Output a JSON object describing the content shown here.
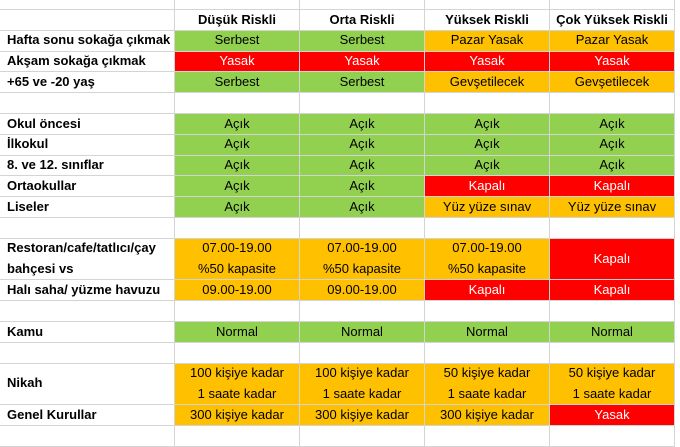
{
  "header": {
    "columns": [
      "Düşük Riskli",
      "Orta Riskli",
      "Yüksek Riskli",
      "Çok Yüksek Riskli"
    ]
  },
  "groups": [
    {
      "rows": [
        {
          "label": [
            "Hafta sonu sokağa çıkmak"
          ],
          "cells": [
            {
              "lines": [
                "Serbest"
              ],
              "color": "#92d050"
            },
            {
              "lines": [
                "Serbest"
              ],
              "color": "#92d050"
            },
            {
              "lines": [
                "Pazar Yasak"
              ],
              "color": "#ffc000"
            },
            {
              "lines": [
                "Pazar Yasak"
              ],
              "color": "#ffc000"
            }
          ]
        },
        {
          "label": [
            "Akşam sokağa çıkmak"
          ],
          "cells": [
            {
              "lines": [
                "Yasak"
              ],
              "color": "#ff0000"
            },
            {
              "lines": [
                "Yasak"
              ],
              "color": "#ff0000"
            },
            {
              "lines": [
                "Yasak"
              ],
              "color": "#ff0000"
            },
            {
              "lines": [
                "Yasak"
              ],
              "color": "#ff0000"
            }
          ]
        },
        {
          "label": [
            "+65 ve -20 yaş"
          ],
          "cells": [
            {
              "lines": [
                "Serbest"
              ],
              "color": "#92d050"
            },
            {
              "lines": [
                "Serbest"
              ],
              "color": "#92d050"
            },
            {
              "lines": [
                "Gevşetilecek"
              ],
              "color": "#ffc000"
            },
            {
              "lines": [
                "Gevşetilecek"
              ],
              "color": "#ffc000"
            }
          ]
        }
      ]
    },
    {
      "rows": [
        {
          "label": [
            "Okul öncesi"
          ],
          "cells": [
            {
              "lines": [
                "Açık"
              ],
              "color": "#92d050"
            },
            {
              "lines": [
                "Açık"
              ],
              "color": "#92d050"
            },
            {
              "lines": [
                "Açık"
              ],
              "color": "#92d050"
            },
            {
              "lines": [
                "Açık"
              ],
              "color": "#92d050"
            }
          ]
        },
        {
          "label": [
            "İlkokul"
          ],
          "cells": [
            {
              "lines": [
                "Açık"
              ],
              "color": "#92d050"
            },
            {
              "lines": [
                "Açık"
              ],
              "color": "#92d050"
            },
            {
              "lines": [
                "Açık"
              ],
              "color": "#92d050"
            },
            {
              "lines": [
                "Açık"
              ],
              "color": "#92d050"
            }
          ]
        },
        {
          "label": [
            "8. ve 12. sınıflar"
          ],
          "cells": [
            {
              "lines": [
                "Açık"
              ],
              "color": "#92d050"
            },
            {
              "lines": [
                "Açık"
              ],
              "color": "#92d050"
            },
            {
              "lines": [
                "Açık"
              ],
              "color": "#92d050"
            },
            {
              "lines": [
                "Açık"
              ],
              "color": "#92d050"
            }
          ]
        },
        {
          "label": [
            "Ortaokullar"
          ],
          "cells": [
            {
              "lines": [
                "Açık"
              ],
              "color": "#92d050"
            },
            {
              "lines": [
                "Açık"
              ],
              "color": "#92d050"
            },
            {
              "lines": [
                "Kapalı"
              ],
              "color": "#ff0000"
            },
            {
              "lines": [
                "Kapalı"
              ],
              "color": "#ff0000"
            }
          ]
        },
        {
          "label": [
            "Liseler"
          ],
          "cells": [
            {
              "lines": [
                "Açık"
              ],
              "color": "#92d050"
            },
            {
              "lines": [
                "Açık"
              ],
              "color": "#92d050"
            },
            {
              "lines": [
                "Yüz yüze sınav"
              ],
              "color": "#ffc000"
            },
            {
              "lines": [
                "Yüz yüze sınav"
              ],
              "color": "#ffc000"
            }
          ]
        }
      ]
    },
    {
      "rows": [
        {
          "label": [
            "Restoran/cafe/tatlıcı/çay",
            "bahçesi vs"
          ],
          "cells": [
            {
              "lines": [
                "07.00-19.00",
                "%50 kapasite"
              ],
              "color": "#ffc000"
            },
            {
              "lines": [
                "07.00-19.00",
                "%50 kapasite"
              ],
              "color": "#ffc000"
            },
            {
              "lines": [
                "07.00-19.00",
                "%50 kapasite"
              ],
              "color": "#ffc000"
            },
            {
              "lines": [
                "Kapalı"
              ],
              "color": "#ff0000"
            }
          ]
        },
        {
          "label": [
            "Halı saha/ yüzme havuzu"
          ],
          "cells": [
            {
              "lines": [
                "09.00-19.00"
              ],
              "color": "#ffc000"
            },
            {
              "lines": [
                "09.00-19.00"
              ],
              "color": "#ffc000"
            },
            {
              "lines": [
                "Kapalı"
              ],
              "color": "#ff0000"
            },
            {
              "lines": [
                "Kapalı"
              ],
              "color": "#ff0000"
            }
          ]
        }
      ]
    },
    {
      "rows": [
        {
          "label": [
            "Kamu"
          ],
          "cells": [
            {
              "lines": [
                "Normal"
              ],
              "color": "#92d050"
            },
            {
              "lines": [
                "Normal"
              ],
              "color": "#92d050"
            },
            {
              "lines": [
                "Normal"
              ],
              "color": "#92d050"
            },
            {
              "lines": [
                "Normal"
              ],
              "color": "#92d050"
            }
          ]
        }
      ]
    },
    {
      "rows": [
        {
          "label": [
            "Nikah"
          ],
          "cells": [
            {
              "lines": [
                "100 kişiye kadar",
                "1 saate kadar"
              ],
              "color": "#ffc000"
            },
            {
              "lines": [
                "100 kişiye kadar",
                "1 saate kadar"
              ],
              "color": "#ffc000"
            },
            {
              "lines": [
                "50 kişiye kadar",
                "1 saate kadar"
              ],
              "color": "#ffc000"
            },
            {
              "lines": [
                "50 kişiye kadar",
                "1 saate kadar"
              ],
              "color": "#ffc000"
            }
          ]
        },
        {
          "label": [
            "Genel Kurullar"
          ],
          "cells": [
            {
              "lines": [
                "300 kişiye kadar"
              ],
              "color": "#ffc000"
            },
            {
              "lines": [
                "300 kişiye kadar"
              ],
              "color": "#ffc000"
            },
            {
              "lines": [
                "300 kişiye kadar"
              ],
              "color": "#ffc000"
            },
            {
              "lines": [
                "Yasak"
              ],
              "color": "#ff0000"
            }
          ]
        }
      ]
    }
  ]
}
